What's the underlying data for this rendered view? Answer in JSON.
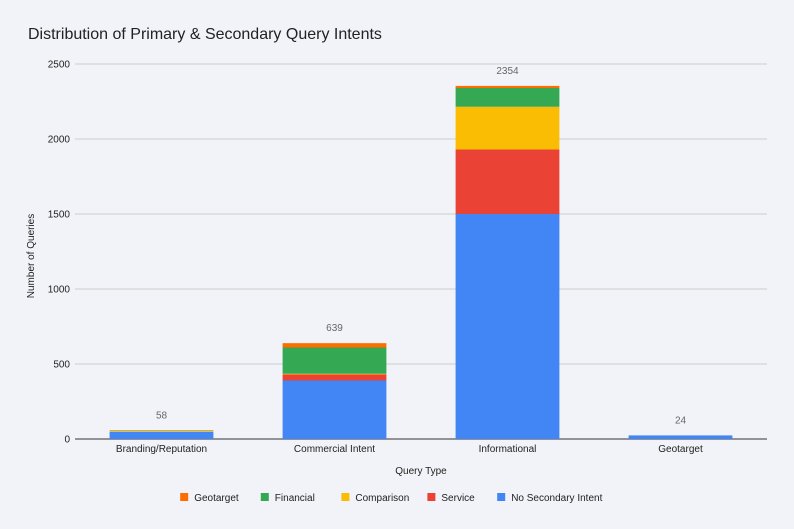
{
  "chart_data": {
    "type": "bar",
    "stacked": true,
    "title": "Distribution of Primary & Secondary Query Intents",
    "xlabel": "Query Type",
    "ylabel": "Number of Queries",
    "ylim": [
      0,
      2500
    ],
    "yticks": [
      0,
      500,
      1000,
      1500,
      2000,
      2500
    ],
    "grid": true,
    "legend_position": "bottom",
    "categories": [
      "Branding/Reputation",
      "Commercial Intent",
      "Informational",
      "Geotarget"
    ],
    "totals": [
      58,
      639,
      2354,
      24
    ],
    "series": [
      {
        "name": "No Secondary Intent",
        "color": "#4285f4",
        "values": [
          48,
          390,
          1500,
          24
        ]
      },
      {
        "name": "Service",
        "color": "#ea4335",
        "values": [
          0,
          40,
          430,
          0
        ]
      },
      {
        "name": "Comparison",
        "color": "#fbbc04",
        "values": [
          5,
          5,
          285,
          0
        ]
      },
      {
        "name": "Financial",
        "color": "#34a853",
        "values": [
          3,
          175,
          125,
          0
        ]
      },
      {
        "name": "Geotarget",
        "color": "#ff6d01",
        "values": [
          2,
          29,
          14,
          0
        ]
      }
    ],
    "legend_order": [
      "Geotarget",
      "Financial",
      "Comparison",
      "Service",
      "No Secondary Intent"
    ]
  }
}
